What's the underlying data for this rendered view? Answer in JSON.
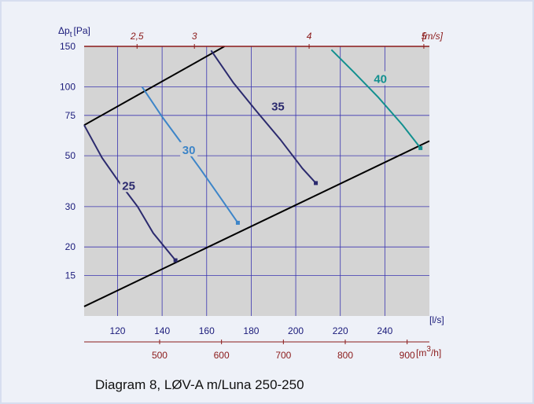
{
  "caption": "Diagram 8, LØV-A m/Luna 250-250",
  "colors": {
    "plot_bg": "#d4d4d4",
    "grid": "#3a35b0",
    "dark_red": "#8b1a1a",
    "black": "#000000",
    "curve_25": "#2b2a6e",
    "curve_30": "#3d85c8",
    "curve_35": "#2b2a6e",
    "curve_40": "#12908f"
  },
  "chart_data": {
    "type": "line",
    "ylabel_main": "Δp",
    "ylabel_sub": "t",
    "ylabel_unit": "[Pa]",
    "y_scale": "log",
    "ylim": [
      10,
      150
    ],
    "yticks": [
      15,
      20,
      30,
      50,
      75,
      100,
      150
    ],
    "xlabel_bottom": "[l/s]",
    "xlim": [
      105,
      260
    ],
    "xticks": [
      120,
      140,
      160,
      180,
      200,
      220,
      240
    ],
    "x2_label_main": "[m",
    "x2_label_sup": "3",
    "x2_label_end": "/h]",
    "x2_ticks": [
      500,
      600,
      700,
      800,
      900
    ],
    "x2_factor": 3.6,
    "top_label": "[m/s]",
    "top_ticks": [
      {
        "label": "2,5",
        "value": 2.5
      },
      {
        "label": "3",
        "value": 3
      },
      {
        "label": "4",
        "value": 4
      },
      {
        "label": "5",
        "value": 5
      }
    ],
    "top_ratio": 51.5,
    "boundaries": [
      {
        "points": [
          [
            105,
            68
          ],
          [
            168,
            150
          ]
        ]
      },
      {
        "points": [
          [
            105,
            11
          ],
          [
            260,
            58
          ]
        ]
      }
    ],
    "series": [
      {
        "name": "25",
        "label_at": [
          125,
          37
        ],
        "points": [
          [
            105,
            68
          ],
          [
            113,
            49
          ],
          [
            121,
            38
          ],
          [
            129,
            30
          ],
          [
            136,
            23
          ],
          [
            146,
            17.5
          ]
        ]
      },
      {
        "name": "30",
        "label_at": [
          152,
          53
        ],
        "points": [
          [
            131,
            100
          ],
          [
            140,
            74
          ],
          [
            148,
            58
          ],
          [
            157,
            44
          ],
          [
            166,
            33
          ],
          [
            174,
            25.5
          ]
        ]
      },
      {
        "name": "35",
        "label_at": [
          192,
          82
        ],
        "points": [
          [
            162,
            144
          ],
          [
            172,
            104
          ],
          [
            182,
            79
          ],
          [
            193,
            59
          ],
          [
            203,
            44
          ],
          [
            209,
            38
          ]
        ]
      },
      {
        "name": "40",
        "label_at": [
          238,
          108
        ],
        "points": [
          [
            216,
            145
          ],
          [
            226,
            116
          ],
          [
            237,
            90
          ],
          [
            248,
            68
          ],
          [
            256,
            54
          ]
        ]
      }
    ]
  }
}
